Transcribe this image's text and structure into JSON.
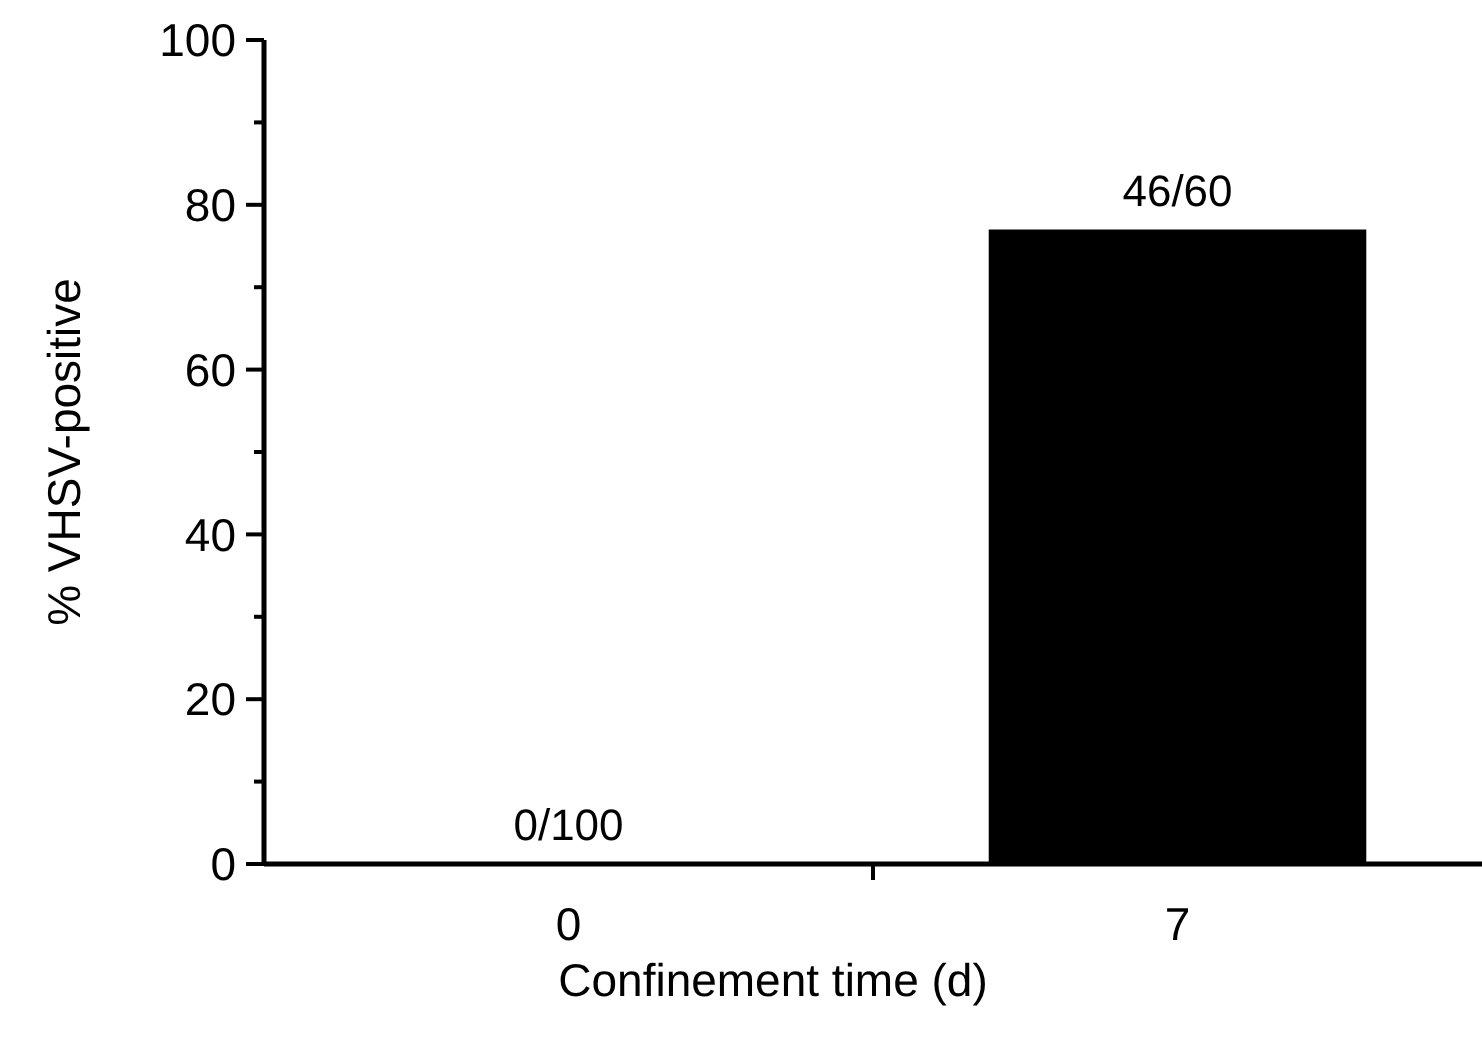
{
  "chart_data": {
    "type": "bar",
    "xlabel": "Confinement time (d)",
    "ylabel": "% VHSV-positive",
    "categories": [
      "0",
      "7"
    ],
    "values": [
      0,
      77
    ],
    "value_labels": [
      "0/100",
      "46/60"
    ],
    "color": "#000000",
    "ylim": [
      0,
      100
    ],
    "yticks": [
      0,
      {
        "value": 10,
        "label": null
      },
      20,
      {
        "value": 30,
        "label": null
      },
      40,
      {
        "value": 50,
        "label": null
      },
      60,
      {
        "value": 70,
        "label": null
      },
      80,
      {
        "value": 90,
        "label": null
      },
      100
    ],
    "grid": false
  }
}
